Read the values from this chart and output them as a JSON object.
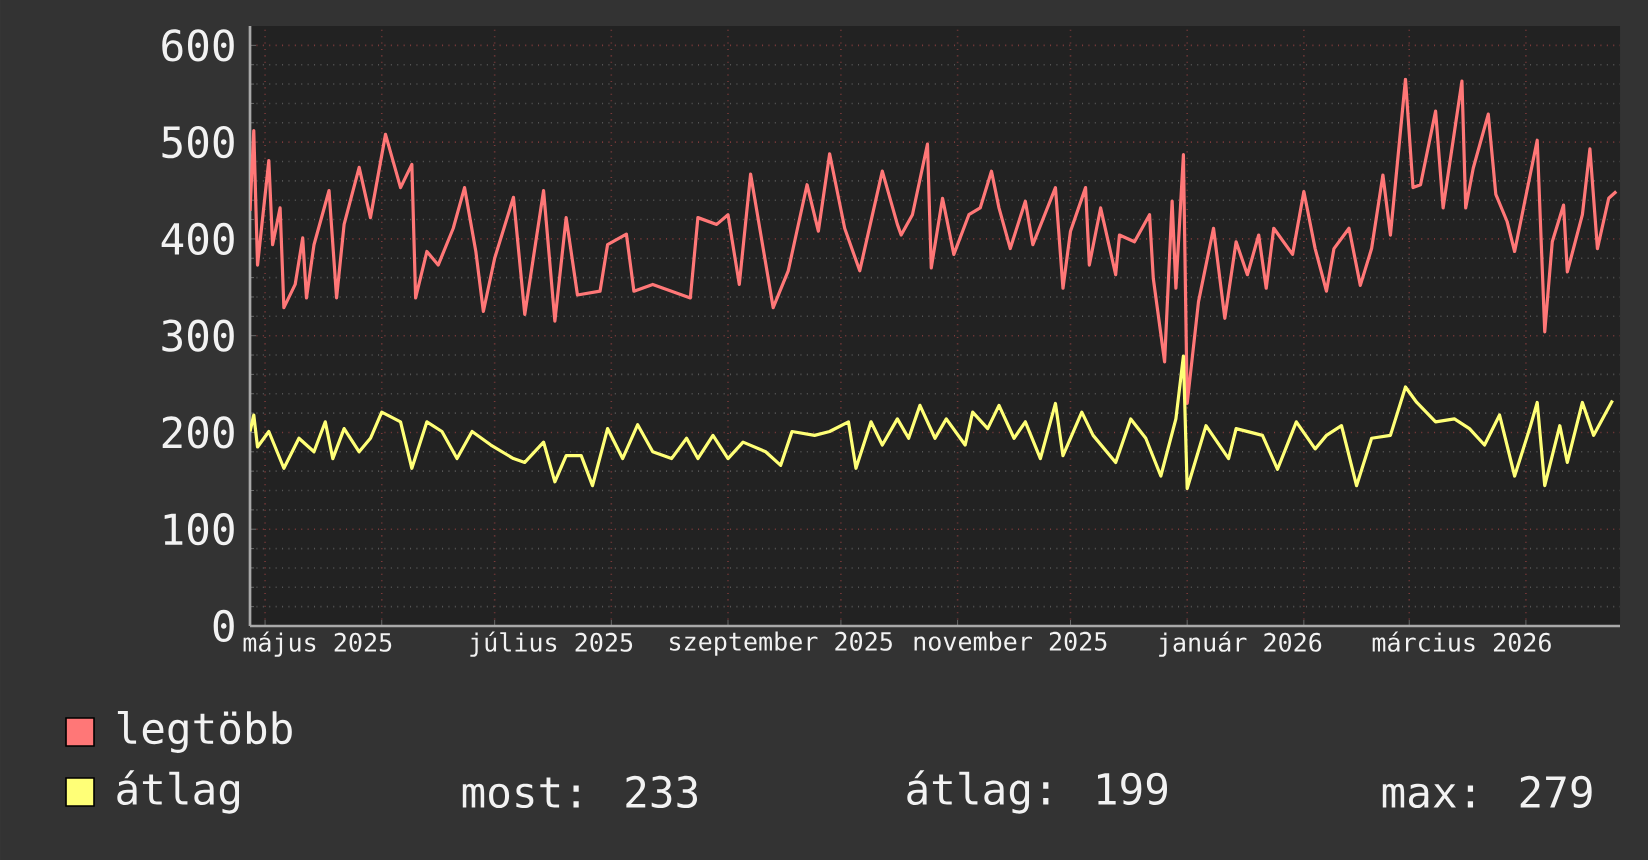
{
  "chart_data": {
    "type": "line",
    "xlim": [
      "2025-04-27",
      "2026-04-26"
    ],
    "ylim": [
      0,
      620
    ],
    "xticks": [
      {
        "value": "2025-05-01",
        "label": null
      },
      {
        "value": "2025-06-01",
        "label": null
      },
      {
        "value": "2025-07-01",
        "label": null
      },
      {
        "value": "2025-08-01",
        "label": null
      },
      {
        "value": "2025-09-01",
        "label": null
      },
      {
        "value": "2025-10-01",
        "label": null
      },
      {
        "value": "2025-11-01",
        "label": null
      },
      {
        "value": "2025-12-01",
        "label": null
      },
      {
        "value": "2026-01-01",
        "label": null
      },
      {
        "value": "2026-02-01",
        "label": null
      },
      {
        "value": "2026-03-01",
        "label": null
      },
      {
        "value": "2026-04-01",
        "label": null
      },
      {
        "value": "2025-05-15",
        "label": "május 2025"
      },
      {
        "value": "2025-07-16",
        "label": "július 2025"
      },
      {
        "value": "2025-09-15",
        "label": "szeptember 2025"
      },
      {
        "value": "2025-11-15",
        "label": "november 2025"
      },
      {
        "value": "2026-01-15",
        "label": "január 2026"
      },
      {
        "value": "2026-03-15",
        "label": "március 2026"
      }
    ],
    "yticks": [
      0,
      100,
      200,
      300,
      400,
      500,
      600
    ],
    "grid": true,
    "legend": "bottom",
    "series": [
      {
        "name": "legtöbb",
        "color": "#ff7777",
        "x": [
          "2025-04-27",
          "2025-04-28",
          "2025-04-29",
          "2025-05-02",
          "2025-05-03",
          "2025-05-05",
          "2025-05-06",
          "2025-05-09",
          "2025-05-11",
          "2025-05-12",
          "2025-05-14",
          "2025-05-18",
          "2025-05-20",
          "2025-05-22",
          "2025-05-26",
          "2025-05-29",
          "2025-06-02",
          "2025-06-06",
          "2025-06-09",
          "2025-06-10",
          "2025-06-13",
          "2025-06-16",
          "2025-06-20",
          "2025-06-23",
          "2025-06-26",
          "2025-06-28",
          "2025-07-01",
          "2025-07-06",
          "2025-07-09",
          "2025-07-14",
          "2025-07-17",
          "2025-07-20",
          "2025-07-23",
          "2025-07-29",
          "2025-07-31",
          "2025-08-05",
          "2025-08-07",
          "2025-08-12",
          "2025-08-22",
          "2025-08-24",
          "2025-08-29",
          "2025-09-01",
          "2025-09-04",
          "2025-09-07",
          "2025-09-13",
          "2025-09-17",
          "2025-09-22",
          "2025-09-25",
          "2025-09-28",
          "2025-10-02",
          "2025-10-06",
          "2025-10-12",
          "2025-10-16",
          "2025-10-17",
          "2025-10-20",
          "2025-10-24",
          "2025-10-25",
          "2025-10-28",
          "2025-10-31",
          "2025-11-04",
          "2025-11-07",
          "2025-11-10",
          "2025-11-12",
          "2025-11-15",
          "2025-11-19",
          "2025-11-21",
          "2025-11-27",
          "2025-11-29",
          "2025-12-01",
          "2025-12-05",
          "2025-12-06",
          "2025-12-09",
          "2025-12-13",
          "2025-12-14",
          "2025-12-18",
          "2025-12-22",
          "2025-12-23",
          "2025-12-26",
          "2025-12-28",
          "2025-12-29",
          "2025-12-31",
          "2026-01-01",
          "2026-01-04",
          "2026-01-08",
          "2026-01-11",
          "2026-01-14",
          "2026-01-17",
          "2026-01-20",
          "2026-01-22",
          "2026-01-24",
          "2026-01-29",
          "2026-02-01",
          "2026-02-04",
          "2026-02-07",
          "2026-02-09",
          "2026-02-13",
          "2026-02-16",
          "2026-02-19",
          "2026-02-22",
          "2026-02-24",
          "2026-02-28",
          "2026-03-02",
          "2026-03-04",
          "2026-03-08",
          "2026-03-10",
          "2026-03-15",
          "2026-03-16",
          "2026-03-18",
          "2026-03-22",
          "2026-03-24",
          "2026-03-27",
          "2026-03-29",
          "2026-04-04",
          "2026-04-06",
          "2026-04-08",
          "2026-04-11",
          "2026-04-12",
          "2026-04-16",
          "2026-04-18",
          "2026-04-20",
          "2026-04-23",
          "2026-04-25"
        ],
        "values": [
          429,
          512,
          373,
          481,
          394,
          432,
          329,
          353,
          401,
          339,
          394,
          450,
          339,
          415,
          474,
          422,
          508,
          453,
          477,
          339,
          387,
          373,
          411,
          453,
          387,
          325,
          380,
          443,
          322,
          450,
          315,
          422,
          342,
          346,
          394,
          405,
          346,
          353,
          339,
          422,
          415,
          425,
          353,
          467,
          329,
          367,
          456,
          408,
          488,
          411,
          367,
          470,
          415,
          404,
          425,
          498,
          370,
          442,
          384,
          425,
          432,
          470,
          432,
          390,
          439,
          394,
          453,
          349,
          408,
          453,
          373,
          432,
          363,
          404,
          397,
          425,
          359,
          273,
          439,
          349,
          487,
          230,
          335,
          411,
          318,
          397,
          363,
          404,
          349,
          411,
          384,
          449,
          390,
          346,
          390,
          411,
          352,
          390,
          466,
          404,
          565,
          453,
          456,
          532,
          432,
          563,
          432,
          473,
          529,
          446,
          418,
          387,
          502,
          304,
          397,
          435,
          366,
          425,
          493,
          390,
          442,
          449
        ]
      },
      {
        "name": "átlag",
        "color": "#ffff77",
        "x": [
          "2025-04-27",
          "2025-04-28",
          "2025-04-29",
          "2025-05-02",
          "2025-05-06",
          "2025-05-10",
          "2025-05-14",
          "2025-05-17",
          "2025-05-19",
          "2025-05-22",
          "2025-05-26",
          "2025-05-29",
          "2025-06-01",
          "2025-06-06",
          "2025-06-09",
          "2025-06-13",
          "2025-06-17",
          "2025-06-21",
          "2025-06-25",
          "2025-06-30",
          "2025-07-06",
          "2025-07-09",
          "2025-07-14",
          "2025-07-17",
          "2025-07-20",
          "2025-07-24",
          "2025-07-27",
          "2025-07-31",
          "2025-08-04",
          "2025-08-08",
          "2025-08-12",
          "2025-08-17",
          "2025-08-21",
          "2025-08-24",
          "2025-08-28",
          "2025-09-01",
          "2025-09-05",
          "2025-09-11",
          "2025-09-15",
          "2025-09-18",
          "2025-09-24",
          "2025-09-28",
          "2025-10-03",
          "2025-10-05",
          "2025-10-09",
          "2025-10-12",
          "2025-10-16",
          "2025-10-19",
          "2025-10-22",
          "2025-10-26",
          "2025-10-29",
          "2025-11-03",
          "2025-11-05",
          "2025-11-09",
          "2025-11-12",
          "2025-11-16",
          "2025-11-19",
          "2025-11-23",
          "2025-11-27",
          "2025-11-29",
          "2025-12-04",
          "2025-12-07",
          "2025-12-13",
          "2025-12-17",
          "2025-12-21",
          "2025-12-25",
          "2025-12-29",
          "2025-12-31",
          "2026-01-01",
          "2026-01-06",
          "2026-01-12",
          "2026-01-14",
          "2026-01-21",
          "2026-01-25",
          "2026-01-30",
          "2026-02-04",
          "2026-02-07",
          "2026-02-11",
          "2026-02-15",
          "2026-02-19",
          "2026-02-24",
          "2026-02-28",
          "2026-03-03",
          "2026-03-08",
          "2026-03-13",
          "2026-03-17",
          "2026-03-21",
          "2026-03-25",
          "2026-03-29",
          "2026-04-02",
          "2026-04-04",
          "2026-04-06",
          "2026-04-10",
          "2026-04-12",
          "2026-04-16",
          "2026-04-19",
          "2026-04-24"
        ],
        "values": [
          201,
          218,
          185,
          201,
          163,
          194,
          180,
          211,
          173,
          204,
          180,
          194,
          221,
          211,
          163,
          211,
          201,
          173,
          201,
          187,
          173,
          169,
          190,
          149,
          176,
          176,
          145,
          204,
          173,
          208,
          180,
          173,
          194,
          173,
          197,
          173,
          190,
          180,
          166,
          201,
          197,
          201,
          211,
          163,
          211,
          187,
          214,
          194,
          228,
          194,
          214,
          187,
          221,
          204,
          228,
          194,
          211,
          173,
          230,
          176,
          221,
          197,
          169,
          214,
          194,
          155,
          214,
          279,
          142,
          207,
          173,
          204,
          197,
          162,
          211,
          183,
          197,
          207,
          145,
          194,
          197,
          247,
          231,
          211,
          214,
          204,
          187,
          218,
          155,
          204,
          231,
          145,
          207,
          169,
          231,
          197,
          233
        ]
      }
    ],
    "annotations": [
      "most: 233",
      "átlag: 199",
      "max: 279"
    ]
  }
}
